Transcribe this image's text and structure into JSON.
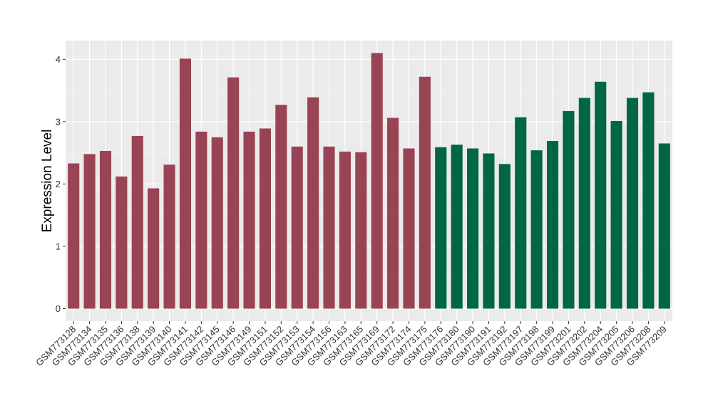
{
  "chart_data": {
    "type": "bar",
    "title": "",
    "xlabel": "",
    "ylabel": "Expression Level",
    "ylim": [
      -0.2,
      4.3
    ],
    "yticks": [
      0,
      1,
      2,
      3,
      4
    ],
    "grid": true,
    "background": "#ebebeb",
    "categories": [
      "GSM773128",
      "GSM773134",
      "GSM773135",
      "GSM773136",
      "GSM773138",
      "GSM773139",
      "GSM773140",
      "GSM773141",
      "GSM773142",
      "GSM773145",
      "GSM773146",
      "GSM773149",
      "GSM773151",
      "GSM773152",
      "GSM773153",
      "GSM773154",
      "GSM773156",
      "GSM773163",
      "GSM773165",
      "GSM773169",
      "GSM773172",
      "GSM773174",
      "GSM773175",
      "GSM773176",
      "GSM773180",
      "GSM773190",
      "GSM773191",
      "GSM773192",
      "GSM773197",
      "GSM773198",
      "GSM773199",
      "GSM773201",
      "GSM773202",
      "GSM773204",
      "GSM773205",
      "GSM773206",
      "GSM773208",
      "GSM773209"
    ],
    "values": [
      2.33,
      2.48,
      2.53,
      2.12,
      2.77,
      1.93,
      2.31,
      4.01,
      2.84,
      2.75,
      3.71,
      2.84,
      2.89,
      3.27,
      2.6,
      3.39,
      2.6,
      2.52,
      2.51,
      4.1,
      3.06,
      2.57,
      3.72,
      2.59,
      2.63,
      2.57,
      2.49,
      2.32,
      3.07,
      2.54,
      2.69,
      3.17,
      3.38,
      3.64,
      3.01,
      3.38,
      3.47,
      2.65
    ],
    "colors": [
      "#994455",
      "#994455",
      "#994455",
      "#994455",
      "#994455",
      "#994455",
      "#994455",
      "#994455",
      "#994455",
      "#994455",
      "#994455",
      "#994455",
      "#994455",
      "#994455",
      "#994455",
      "#994455",
      "#994455",
      "#994455",
      "#994455",
      "#994455",
      "#994455",
      "#994455",
      "#994455",
      "#006644",
      "#006644",
      "#006644",
      "#006644",
      "#006644",
      "#006644",
      "#006644",
      "#006644",
      "#006644",
      "#006644",
      "#006644",
      "#006644",
      "#006644",
      "#006644",
      "#006644"
    ]
  }
}
